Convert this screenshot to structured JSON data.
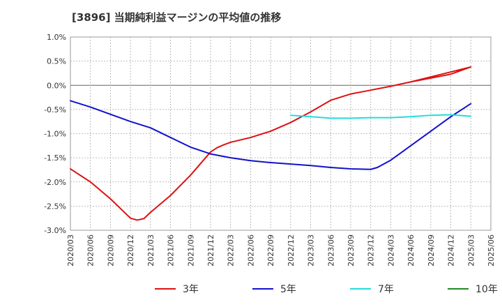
{
  "chart_data": {
    "type": "line",
    "title": "[3896]  当期純利益マージンの平均値の推移",
    "xlabel": "",
    "ylabel": "",
    "x_ticks": [
      "2020/03",
      "2020/06",
      "2020/09",
      "2020/12",
      "2021/03",
      "2021/06",
      "2021/09",
      "2021/12",
      "2022/03",
      "2022/06",
      "2022/09",
      "2022/12",
      "2023/03",
      "2023/06",
      "2023/09",
      "2023/12",
      "2024/03",
      "2024/06",
      "2024/09",
      "2024/12",
      "2025/03",
      "2025/06"
    ],
    "y_ticks": [
      "1.0%",
      "0.5%",
      "0.0%",
      "-0.5%",
      "-1.0%",
      "-1.5%",
      "-2.0%",
      "-2.5%",
      "-3.0%"
    ],
    "y_tick_values": [
      1.0,
      0.5,
      0.0,
      -0.5,
      -1.0,
      -1.5,
      -2.0,
      -2.5,
      -3.0
    ],
    "ylim": [
      -3.0,
      1.0
    ],
    "x_range": [
      "2020/03",
      "2025/06"
    ],
    "grid": true,
    "legend_position": "bottom",
    "series": [
      {
        "name": "3年",
        "color": "#dd1111",
        "points": [
          [
            "2020/03",
            -1.73
          ],
          [
            "2020/06",
            -2.0
          ],
          [
            "2020/09",
            -2.35
          ],
          [
            "2020/12",
            -2.75
          ],
          [
            "2021/01",
            -2.79
          ],
          [
            "2021/02",
            -2.76
          ],
          [
            "2021/03",
            -2.63
          ],
          [
            "2021/06",
            -2.28
          ],
          [
            "2021/09",
            -1.86
          ],
          [
            "2021/12",
            -1.38
          ],
          [
            "2022/01",
            -1.29
          ],
          [
            "2022/02",
            -1.23
          ],
          [
            "2022/03",
            -1.18
          ],
          [
            "2022/06",
            -1.08
          ],
          [
            "2022/09",
            -0.95
          ],
          [
            "2022/12",
            -0.77
          ],
          [
            "2023/03",
            -0.55
          ],
          [
            "2023/06",
            -0.31
          ],
          [
            "2023/09",
            -0.18
          ],
          [
            "2023/12",
            -0.1
          ],
          [
            "2024/03",
            -0.02
          ],
          [
            "2024/06",
            0.07
          ],
          [
            "2024/09",
            0.15
          ],
          [
            "2024/12",
            0.23
          ],
          [
            "2025/03",
            0.38
          ],
          [
            "2024/06",
            0.07
          ]
        ]
      },
      {
        "name": "5年",
        "color": "#1111cc",
        "points": [
          [
            "2020/03",
            -0.32
          ],
          [
            "2020/06",
            -0.45
          ],
          [
            "2020/09",
            -0.6
          ],
          [
            "2020/12",
            -0.75
          ],
          [
            "2021/03",
            -0.88
          ],
          [
            "2021/06",
            -1.08
          ],
          [
            "2021/09",
            -1.28
          ],
          [
            "2021/12",
            -1.42
          ],
          [
            "2022/03",
            -1.5
          ],
          [
            "2022/06",
            -1.56
          ],
          [
            "2022/09",
            -1.6
          ],
          [
            "2022/12",
            -1.63
          ],
          [
            "2023/03",
            -1.66
          ],
          [
            "2023/06",
            -1.7
          ],
          [
            "2023/09",
            -1.73
          ],
          [
            "2023/12",
            -1.74
          ],
          [
            "2024/01",
            -1.7
          ],
          [
            "2024/03",
            -1.55
          ],
          [
            "2024/06",
            -1.25
          ],
          [
            "2024/09",
            -0.95
          ],
          [
            "2024/12",
            -0.65
          ],
          [
            "2025/03",
            -0.38
          ]
        ]
      },
      {
        "name": "7年",
        "color": "#22dddd",
        "points": [
          [
            "2022/12",
            -0.62
          ],
          [
            "2023/03",
            -0.65
          ],
          [
            "2023/06",
            -0.68
          ],
          [
            "2023/09",
            -0.68
          ],
          [
            "2023/12",
            -0.67
          ],
          [
            "2024/03",
            -0.67
          ],
          [
            "2024/06",
            -0.65
          ],
          [
            "2024/09",
            -0.62
          ],
          [
            "2024/12",
            -0.61
          ],
          [
            "2025/03",
            -0.64
          ]
        ]
      },
      {
        "name": "10年",
        "color": "#228822",
        "points": []
      }
    ]
  }
}
